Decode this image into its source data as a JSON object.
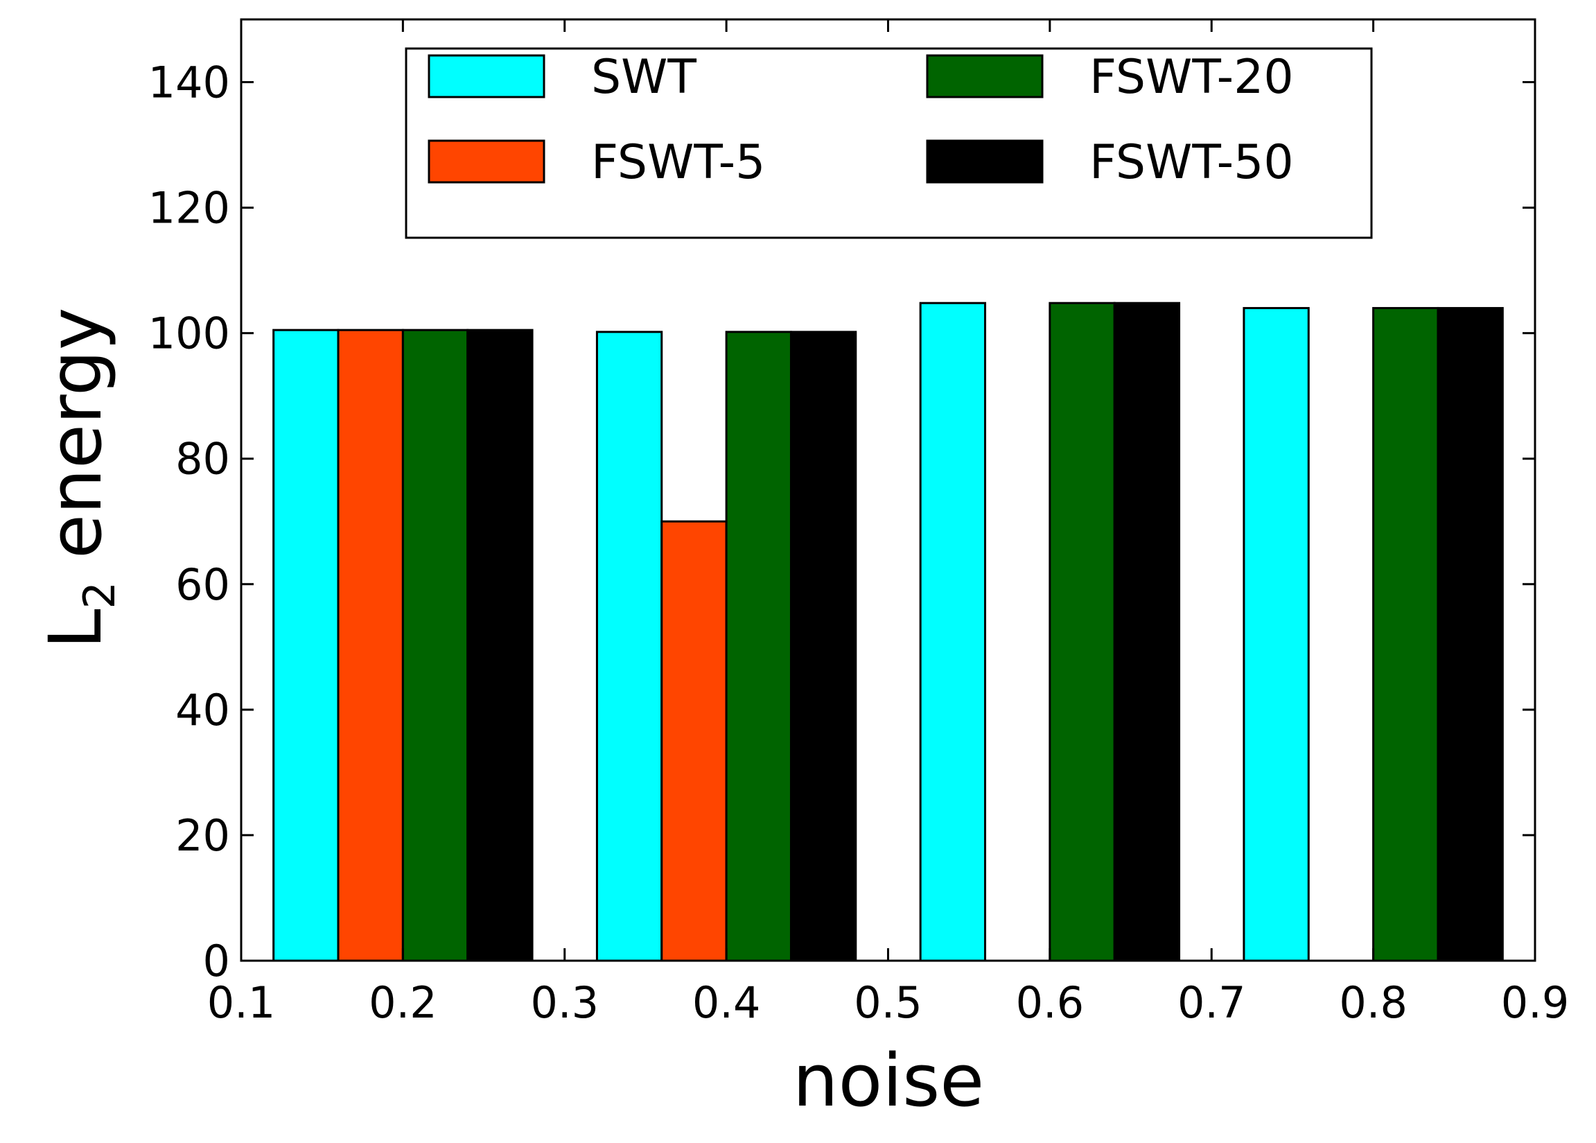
{
  "chart_data": {
    "type": "bar",
    "title": "",
    "xlabel": "noise",
    "ylabel_main": "L",
    "ylabel_sub": "2",
    "ylabel_rest": " energy",
    "xlim": [
      0.1,
      0.9
    ],
    "ylim": [
      0,
      150
    ],
    "x_ticks": [
      "0.1",
      "0.2",
      "0.3",
      "0.4",
      "0.5",
      "0.6",
      "0.7",
      "0.8",
      "0.9"
    ],
    "y_ticks": [
      "0",
      "20",
      "40",
      "60",
      "80",
      "100",
      "120",
      "140"
    ],
    "grid": false,
    "legend_position": "top-center",
    "bar_width": 0.04,
    "series": [
      {
        "name": "SWT",
        "color": "#00ffff",
        "x": [
          0.12,
          0.32,
          0.52,
          0.72
        ],
        "values": [
          100.5,
          100.2,
          104.8,
          104.0
        ]
      },
      {
        "name": "FSWT-5",
        "color": "#ff4500",
        "x": [
          0.16,
          0.36,
          0.56,
          0.76
        ],
        "values": [
          100.5,
          70.0,
          0,
          0
        ]
      },
      {
        "name": "FSWT-20",
        "color": "#006400",
        "x": [
          0.2,
          0.4,
          0.6,
          0.8
        ],
        "values": [
          100.5,
          100.2,
          104.8,
          104.0
        ]
      },
      {
        "name": "FSWT-50",
        "color": "#000000",
        "x": [
          0.24,
          0.44,
          0.64,
          0.84
        ],
        "values": [
          100.5,
          100.2,
          104.8,
          104.0
        ]
      }
    ]
  }
}
